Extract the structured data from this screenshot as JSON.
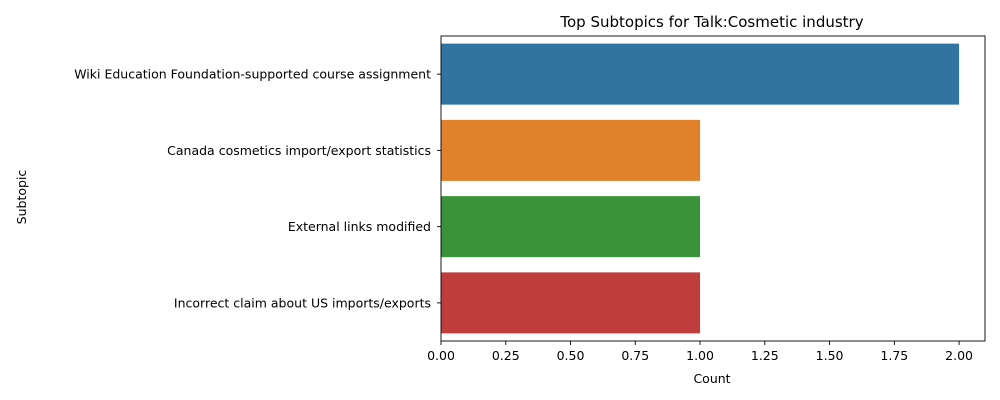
{
  "chart_data": {
    "type": "bar",
    "orientation": "horizontal",
    "title": "Top Subtopics for Talk:Cosmetic industry",
    "xlabel": "Count",
    "ylabel": "Subtopic",
    "categories": [
      "Wiki Education Foundation-supported course assignment",
      "Canada cosmetics import/export statistics",
      "External links modified",
      "Incorrect claim about US imports/exports"
    ],
    "values": [
      2,
      1,
      1,
      1
    ],
    "colors": [
      "#3274a1",
      "#e1812c",
      "#3a923a",
      "#c03d3e"
    ],
    "xlim": [
      0,
      2.1
    ],
    "xticks": [
      "0.00",
      "0.25",
      "0.50",
      "0.75",
      "1.00",
      "1.25",
      "1.50",
      "1.75",
      "2.00"
    ],
    "grid": false,
    "legend": "none"
  }
}
